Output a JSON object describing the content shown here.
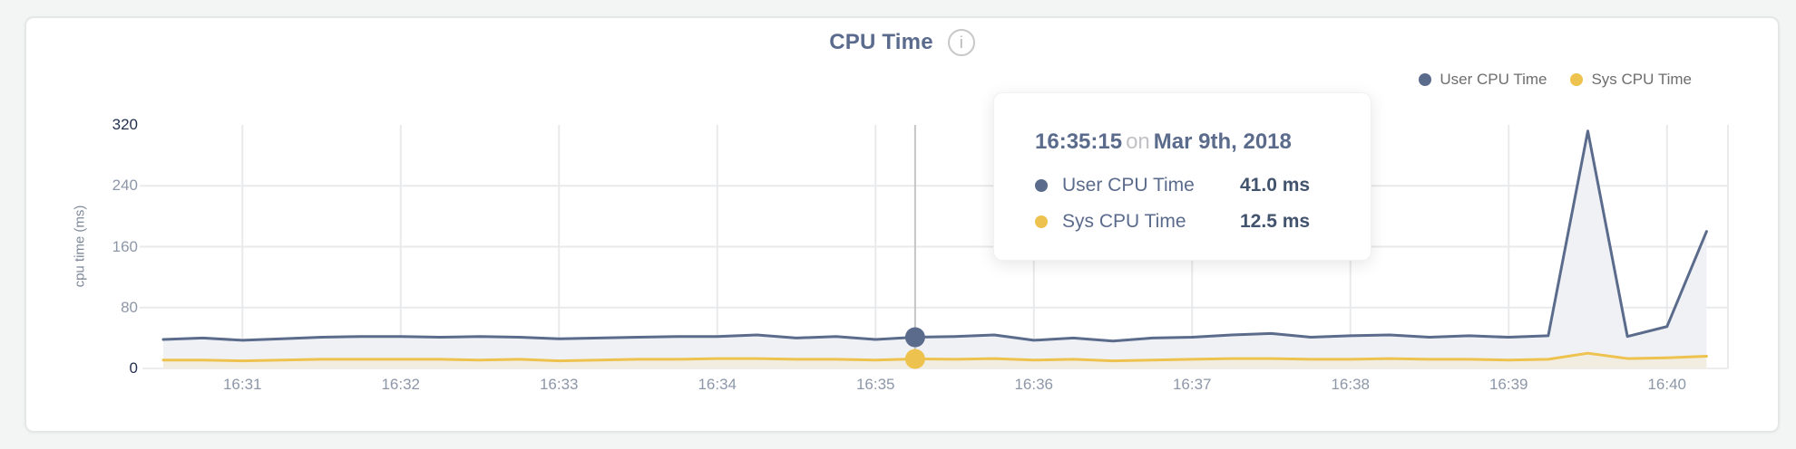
{
  "page": {
    "background": "#f3f4f4"
  },
  "header": {
    "title": "CPU Time",
    "info_icon": "i"
  },
  "legend": {
    "items": [
      {
        "label": "User CPU Time",
        "color": "#5b6b8c"
      },
      {
        "label": "Sys CPU Time",
        "color": "#eec24e"
      }
    ]
  },
  "axes": {
    "y": {
      "title": "cpu time (ms)"
    },
    "x": {}
  },
  "tooltip": {
    "time": "16:35:15",
    "connector": "on",
    "date": "Mar 9th, 2018",
    "rows": [
      {
        "label": "User CPU Time",
        "value": "41.0 ms",
        "color": "#5b6b8c"
      },
      {
        "label": "Sys CPU Time",
        "value": "12.5 ms",
        "color": "#eec24e"
      }
    ]
  },
  "chart_data": {
    "type": "area",
    "title": "CPU Time",
    "ylabel": "cpu time (ms)",
    "ylim": [
      0,
      320
    ],
    "y_ticks": [
      0,
      80,
      160,
      240,
      320
    ],
    "y_ticks_emphasized": [
      0,
      320
    ],
    "grid": true,
    "legend_position": "top-right",
    "x_tick_labels": [
      "16:31",
      "16:32",
      "16:33",
      "16:34",
      "16:35",
      "16:36",
      "16:37",
      "16:38",
      "16:39",
      "16:40"
    ],
    "x_tick_indices": [
      2,
      6,
      10,
      14,
      18,
      22,
      26,
      30,
      34,
      38
    ],
    "x": [
      "16:30:30",
      "16:30:45",
      "16:31:00",
      "16:31:15",
      "16:31:30",
      "16:31:45",
      "16:32:00",
      "16:32:15",
      "16:32:30",
      "16:32:45",
      "16:33:00",
      "16:33:15",
      "16:33:30",
      "16:33:45",
      "16:34:00",
      "16:34:15",
      "16:34:30",
      "16:34:45",
      "16:35:00",
      "16:35:15",
      "16:35:30",
      "16:35:45",
      "16:36:00",
      "16:36:15",
      "16:36:30",
      "16:36:45",
      "16:37:00",
      "16:37:15",
      "16:37:30",
      "16:37:45",
      "16:38:00",
      "16:38:15",
      "16:38:30",
      "16:38:45",
      "16:39:00",
      "16:39:15",
      "16:39:30",
      "16:39:45",
      "16:40:00",
      "16:40:15"
    ],
    "series": [
      {
        "name": "User CPU Time",
        "color": "#5b6b8c",
        "fill": "#eff1f5",
        "values": [
          38,
          40,
          37,
          39,
          41,
          42,
          42,
          41,
          42,
          41,
          39,
          40,
          41,
          42,
          42,
          44,
          40,
          42,
          38,
          41,
          42,
          44,
          37,
          40,
          36,
          40,
          41,
          44,
          46,
          41,
          43,
          44,
          41,
          43,
          41,
          43,
          312,
          42,
          55,
          180
        ]
      },
      {
        "name": "Sys CPU Time",
        "color": "#eec24e",
        "fill": "#f1ede0",
        "values": [
          11,
          11,
          10,
          11,
          12,
          12,
          12,
          12,
          11,
          12,
          10,
          11,
          12,
          12,
          13,
          13,
          12,
          12,
          11,
          12.5,
          12,
          13,
          11,
          12,
          10,
          11,
          12,
          13,
          13,
          12,
          12,
          13,
          12,
          12,
          11,
          12,
          20,
          13,
          14,
          16
        ]
      }
    ],
    "cursor": {
      "x_index": 19,
      "time": "16:35:15",
      "date": "Mar 9th, 2018",
      "values": [
        41.0,
        12.5
      ]
    },
    "colors": {
      "gridline": "#e9eaeb",
      "baseline": "#ededee",
      "cursor_line": "#c4c4c4"
    }
  }
}
